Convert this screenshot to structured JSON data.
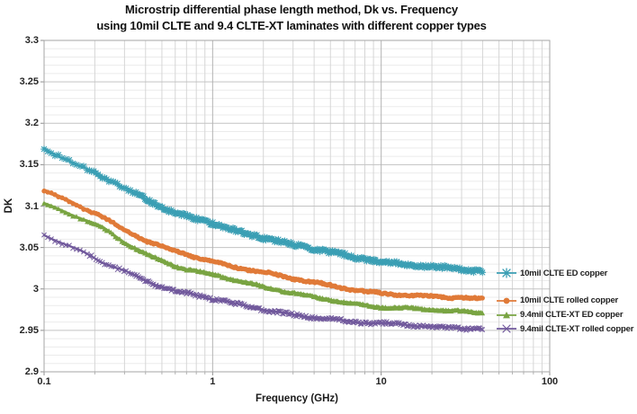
{
  "title": {
    "line1": "Microstrip differential phase length method, Dk vs. Frequency",
    "line2": "using 10mil CLTE and 9.4 CLTE-XT laminates with different copper types"
  },
  "chart_data": {
    "type": "line",
    "title": "Microstrip differential phase length method, Dk vs. Frequency using 10mil CLTE and 9.4 CLTE-XT laminates with different copper types",
    "xlabel": "Frequency (GHz)",
    "ylabel": "DK",
    "x_scale": "log",
    "xlim": [
      0.1,
      100
    ],
    "ylim": [
      2.9,
      3.3
    ],
    "x_ticks": [
      "0.1",
      "1",
      "10",
      "100"
    ],
    "y_ticks": [
      "3.3",
      "3.25",
      "3.2",
      "3.15",
      "3.1",
      "3.05",
      "3",
      "2.95",
      "2.9"
    ],
    "y_major_step": 0.05,
    "y_minor_step": 0.01,
    "grid": "major+minor",
    "legend_position": "right, each label beside its curve end",
    "frequencies_ghz": [
      0.1,
      0.13,
      0.17,
      0.22,
      0.3,
      0.4,
      0.55,
      0.7,
      1.0,
      1.4,
      2,
      3,
      4.5,
      7,
      10,
      15,
      22,
      30,
      40
    ],
    "series": [
      {
        "name": "10mil CLTE ED copper",
        "color": "#3b9fb4",
        "marker": "asterisk",
        "dk": [
          3.17,
          3.158,
          3.147,
          3.136,
          3.122,
          3.108,
          3.094,
          3.087,
          3.08,
          3.07,
          3.062,
          3.053,
          3.046,
          3.038,
          3.033,
          3.029,
          3.026,
          3.023,
          3.021
        ]
      },
      {
        "name": "10mil CLTE rolled copper",
        "color": "#e07a38",
        "marker": "circle",
        "dk": [
          3.12,
          3.109,
          3.098,
          3.088,
          3.07,
          3.058,
          3.048,
          3.042,
          3.033,
          3.026,
          3.02,
          3.012,
          3.006,
          2.999,
          2.995,
          2.992,
          2.99,
          2.989,
          2.988
        ]
      },
      {
        "name": "9.4mil CLTE-XT ED copper",
        "color": "#79a442",
        "marker": "triangle",
        "dk": [
          3.103,
          3.094,
          3.084,
          3.074,
          3.056,
          3.042,
          3.031,
          3.024,
          3.018,
          3.01,
          3.002,
          2.995,
          2.989,
          2.982,
          2.978,
          2.976,
          2.974,
          2.973,
          2.972
        ]
      },
      {
        "name": "9.4mil CLTE-XT rolled copper",
        "color": "#71599c",
        "marker": "x",
        "dk": [
          3.065,
          3.055,
          3.044,
          3.032,
          3.022,
          3.01,
          3.0,
          2.995,
          2.988,
          2.981,
          2.975,
          2.969,
          2.965,
          2.96,
          2.958,
          2.956,
          2.954,
          2.953,
          2.952
        ]
      }
    ]
  }
}
